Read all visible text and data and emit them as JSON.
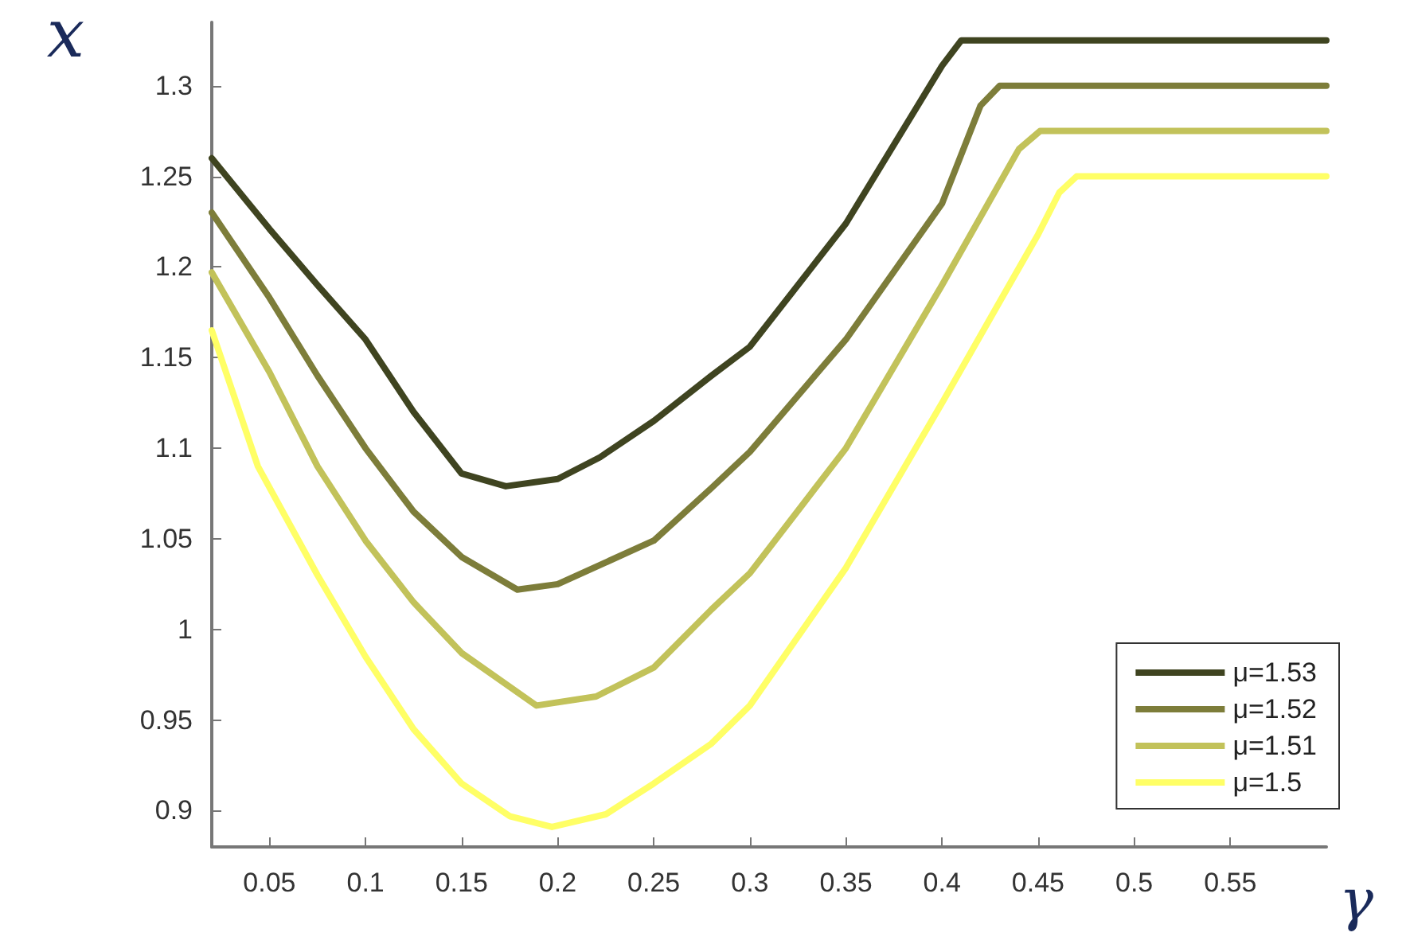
{
  "chart_data": {
    "type": "line",
    "xlabel": "γ",
    "ylabel": "x",
    "xlim": [
      0.02,
      0.6
    ],
    "xticks": [
      0.05,
      0.1,
      0.15,
      0.2,
      0.25,
      0.3,
      0.35,
      0.4,
      0.45,
      0.5,
      0.55
    ],
    "ylim": [
      0.88,
      1.335
    ],
    "yticks": [
      0.9,
      0.95,
      1,
      1.05,
      1.1,
      1.15,
      1.2,
      1.25,
      1.3
    ],
    "grid": false,
    "legend": "bottom right",
    "line_style": "solid",
    "marker": "none",
    "series": [
      {
        "name": "μ=1.53",
        "color": "#3f4420",
        "x": [
          0.02,
          0.05,
          0.075,
          0.1,
          0.125,
          0.15,
          0.173,
          0.2,
          0.222,
          0.25,
          0.28,
          0.3,
          0.35,
          0.4,
          0.41,
          0.6
        ],
        "values": [
          1.26,
          1.221,
          1.19,
          1.16,
          1.12,
          1.086,
          1.079,
          1.083,
          1.095,
          1.115,
          1.14,
          1.156,
          1.224,
          1.311,
          1.325,
          1.325
        ]
      },
      {
        "name": "μ=1.52",
        "color": "#7d7d3a",
        "x": [
          0.02,
          0.05,
          0.075,
          0.1,
          0.125,
          0.15,
          0.179,
          0.2,
          0.25,
          0.28,
          0.3,
          0.35,
          0.4,
          0.42,
          0.43,
          0.6
        ],
        "values": [
          1.23,
          1.183,
          1.14,
          1.1,
          1.065,
          1.04,
          1.022,
          1.025,
          1.049,
          1.078,
          1.098,
          1.16,
          1.235,
          1.289,
          1.3,
          1.3
        ]
      },
      {
        "name": "μ=1.51",
        "color": "#c2c25a",
        "x": [
          0.02,
          0.05,
          0.075,
          0.1,
          0.125,
          0.15,
          0.189,
          0.22,
          0.25,
          0.28,
          0.3,
          0.35,
          0.4,
          0.44,
          0.451,
          0.6
        ],
        "values": [
          1.197,
          1.142,
          1.09,
          1.049,
          1.015,
          0.987,
          0.958,
          0.963,
          0.979,
          1.011,
          1.031,
          1.1,
          1.19,
          1.265,
          1.275,
          1.275
        ]
      },
      {
        "name": "μ=1.5",
        "color": "#ffff66",
        "x": [
          0.02,
          0.044,
          0.075,
          0.1,
          0.125,
          0.15,
          0.175,
          0.197,
          0.225,
          0.25,
          0.28,
          0.3,
          0.35,
          0.4,
          0.45,
          0.461,
          0.47,
          0.6
        ],
        "values": [
          1.165,
          1.09,
          1.03,
          0.985,
          0.945,
          0.915,
          0.897,
          0.891,
          0.898,
          0.915,
          0.937,
          0.958,
          1.034,
          1.125,
          1.218,
          1.241,
          1.25,
          1.25
        ]
      }
    ]
  }
}
